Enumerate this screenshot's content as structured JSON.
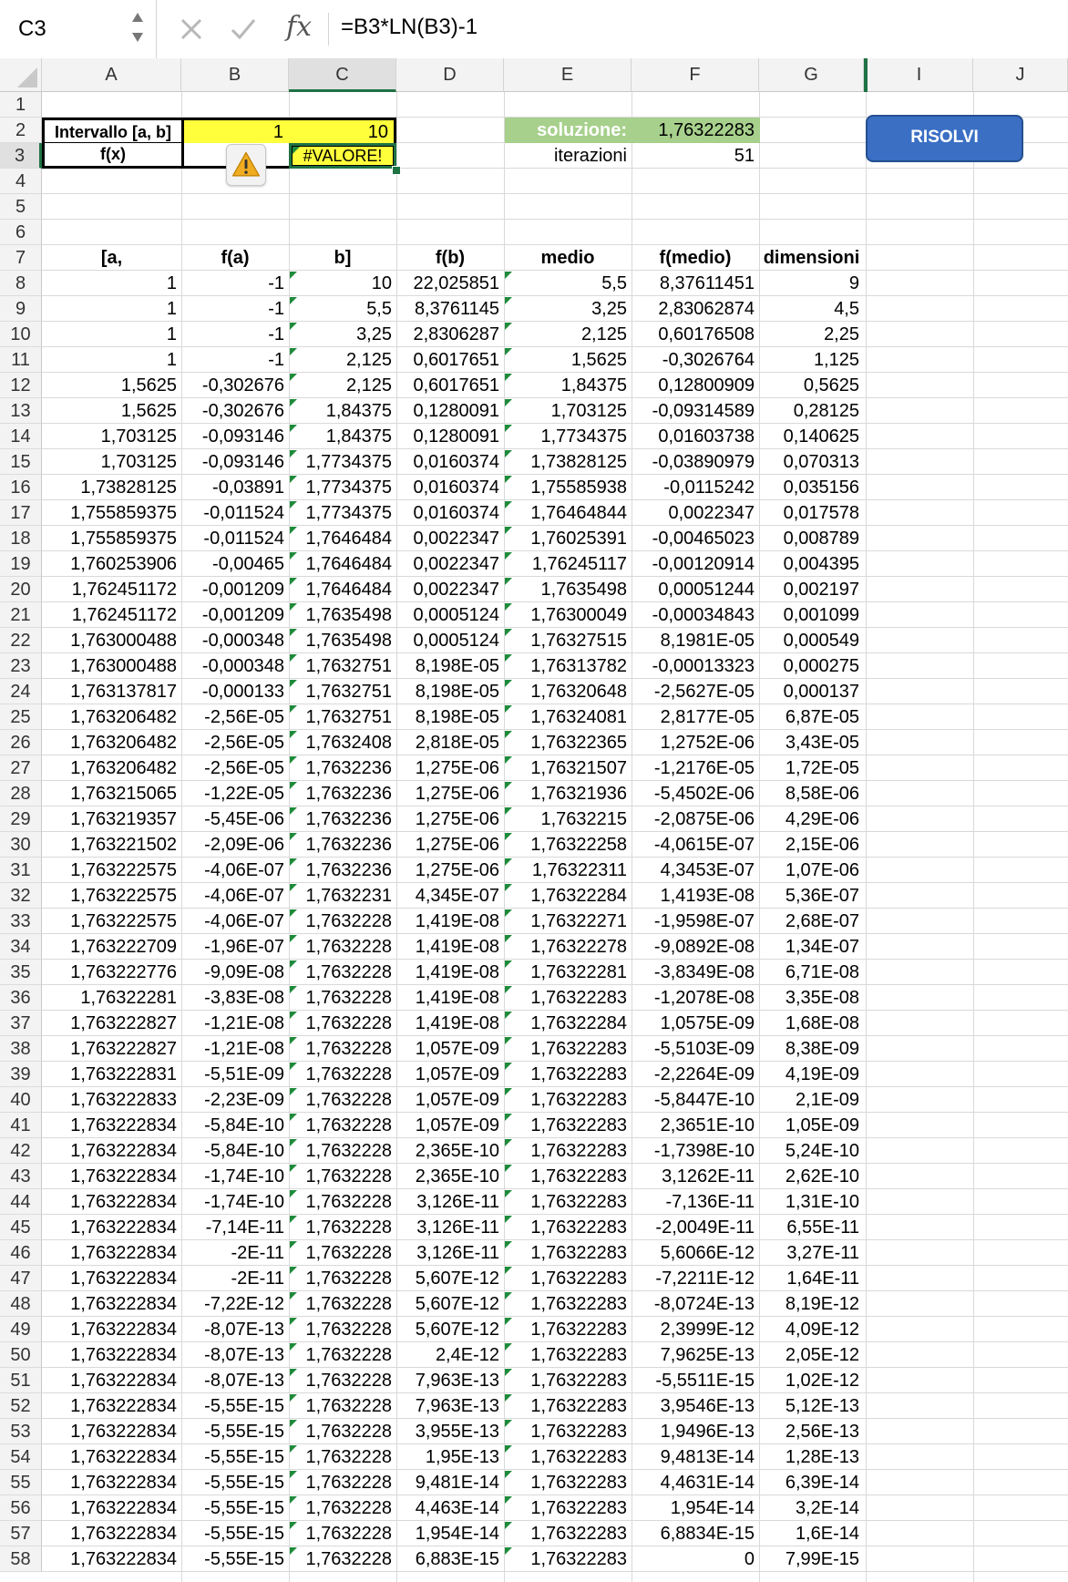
{
  "formula_bar": {
    "name_box": "C3",
    "formula": "=B3*LN(B3)-1"
  },
  "columns": [
    "A",
    "B",
    "C",
    "D",
    "E",
    "F",
    "G",
    "I",
    "J"
  ],
  "selected_column": "C",
  "selected_row": "3",
  "rows": [
    "1",
    "2",
    "3",
    "4",
    "5",
    "6",
    "7",
    "8",
    "9",
    "10",
    "11",
    "12",
    "13",
    "14",
    "15",
    "16",
    "17",
    "18",
    "19",
    "20",
    "21",
    "22",
    "23",
    "24",
    "25",
    "26",
    "27",
    "28",
    "29",
    "30",
    "31",
    "32",
    "33",
    "34",
    "35",
    "36",
    "37",
    "38",
    "39",
    "40",
    "41",
    "42",
    "43",
    "44",
    "45",
    "46",
    "47",
    "48",
    "49",
    "50",
    "51",
    "52",
    "53",
    "54",
    "55",
    "56",
    "57",
    "58"
  ],
  "top": {
    "a2": "Intervallo [a, b]",
    "b2": "1",
    "c2": "10",
    "a3": "f(x)",
    "c3": "#VALORE!",
    "e2": "soluzione:",
    "f2": "1,76322283",
    "e3": "iterazioni",
    "f3": "51"
  },
  "button": {
    "label": "RISOLVI"
  },
  "headers": [
    "[a,",
    "f(a)",
    "b]",
    "f(b)",
    "medio",
    "f(medio)",
    "dimensioni"
  ],
  "table": [
    [
      "1",
      "-1",
      "10",
      "22,025851",
      "5,5",
      "8,37611451",
      "9"
    ],
    [
      "1",
      "-1",
      "5,5",
      "8,3761145",
      "3,25",
      "2,83062874",
      "4,5"
    ],
    [
      "1",
      "-1",
      "3,25",
      "2,8306287",
      "2,125",
      "0,60176508",
      "2,25"
    ],
    [
      "1",
      "-1",
      "2,125",
      "0,6017651",
      "1,5625",
      "-0,3026764",
      "1,125"
    ],
    [
      "1,5625",
      "-0,302676",
      "2,125",
      "0,6017651",
      "1,84375",
      "0,12800909",
      "0,5625"
    ],
    [
      "1,5625",
      "-0,302676",
      "1,84375",
      "0,1280091",
      "1,703125",
      "-0,09314589",
      "0,28125"
    ],
    [
      "1,703125",
      "-0,093146",
      "1,84375",
      "0,1280091",
      "1,7734375",
      "0,01603738",
      "0,140625"
    ],
    [
      "1,703125",
      "-0,093146",
      "1,7734375",
      "0,0160374",
      "1,73828125",
      "-0,03890979",
      "0,070313"
    ],
    [
      "1,73828125",
      "-0,03891",
      "1,7734375",
      "0,0160374",
      "1,75585938",
      "-0,0115242",
      "0,035156"
    ],
    [
      "1,755859375",
      "-0,011524",
      "1,7734375",
      "0,0160374",
      "1,76464844",
      "0,0022347",
      "0,017578"
    ],
    [
      "1,755859375",
      "-0,011524",
      "1,7646484",
      "0,0022347",
      "1,76025391",
      "-0,00465023",
      "0,008789"
    ],
    [
      "1,760253906",
      "-0,00465",
      "1,7646484",
      "0,0022347",
      "1,76245117",
      "-0,00120914",
      "0,004395"
    ],
    [
      "1,762451172",
      "-0,001209",
      "1,7646484",
      "0,0022347",
      "1,7635498",
      "0,00051244",
      "0,002197"
    ],
    [
      "1,762451172",
      "-0,001209",
      "1,7635498",
      "0,0005124",
      "1,76300049",
      "-0,00034843",
      "0,001099"
    ],
    [
      "1,763000488",
      "-0,000348",
      "1,7635498",
      "0,0005124",
      "1,76327515",
      "8,1981E-05",
      "0,000549"
    ],
    [
      "1,763000488",
      "-0,000348",
      "1,7632751",
      "8,198E-05",
      "1,76313782",
      "-0,00013323",
      "0,000275"
    ],
    [
      "1,763137817",
      "-0,000133",
      "1,7632751",
      "8,198E-05",
      "1,76320648",
      "-2,5627E-05",
      "0,000137"
    ],
    [
      "1,763206482",
      "-2,56E-05",
      "1,7632751",
      "8,198E-05",
      "1,76324081",
      "2,8177E-05",
      "6,87E-05"
    ],
    [
      "1,763206482",
      "-2,56E-05",
      "1,7632408",
      "2,818E-05",
      "1,76322365",
      "1,2752E-06",
      "3,43E-05"
    ],
    [
      "1,763206482",
      "-2,56E-05",
      "1,7632236",
      "1,275E-06",
      "1,76321507",
      "-1,2176E-05",
      "1,72E-05"
    ],
    [
      "1,763215065",
      "-1,22E-05",
      "1,7632236",
      "1,275E-06",
      "1,76321936",
      "-5,4502E-06",
      "8,58E-06"
    ],
    [
      "1,763219357",
      "-5,45E-06",
      "1,7632236",
      "1,275E-06",
      "1,7632215",
      "-2,0875E-06",
      "4,29E-06"
    ],
    [
      "1,763221502",
      "-2,09E-06",
      "1,7632236",
      "1,275E-06",
      "1,76322258",
      "-4,0615E-07",
      "2,15E-06"
    ],
    [
      "1,763222575",
      "-4,06E-07",
      "1,7632236",
      "1,275E-06",
      "1,76322311",
      "4,3453E-07",
      "1,07E-06"
    ],
    [
      "1,763222575",
      "-4,06E-07",
      "1,7632231",
      "4,345E-07",
      "1,76322284",
      "1,4193E-08",
      "5,36E-07"
    ],
    [
      "1,763222575",
      "-4,06E-07",
      "1,7632228",
      "1,419E-08",
      "1,76322271",
      "-1,9598E-07",
      "2,68E-07"
    ],
    [
      "1,763222709",
      "-1,96E-07",
      "1,7632228",
      "1,419E-08",
      "1,76322278",
      "-9,0892E-08",
      "1,34E-07"
    ],
    [
      "1,763222776",
      "-9,09E-08",
      "1,7632228",
      "1,419E-08",
      "1,76322281",
      "-3,8349E-08",
      "6,71E-08"
    ],
    [
      "1,76322281",
      "-3,83E-08",
      "1,7632228",
      "1,419E-08",
      "1,76322283",
      "-1,2078E-08",
      "3,35E-08"
    ],
    [
      "1,763222827",
      "-1,21E-08",
      "1,7632228",
      "1,419E-08",
      "1,76322284",
      "1,0575E-09",
      "1,68E-08"
    ],
    [
      "1,763222827",
      "-1,21E-08",
      "1,7632228",
      "1,057E-09",
      "1,76322283",
      "-5,5103E-09",
      "8,38E-09"
    ],
    [
      "1,763222831",
      "-5,51E-09",
      "1,7632228",
      "1,057E-09",
      "1,76322283",
      "-2,2264E-09",
      "4,19E-09"
    ],
    [
      "1,763222833",
      "-2,23E-09",
      "1,7632228",
      "1,057E-09",
      "1,76322283",
      "-5,8447E-10",
      "2,1E-09"
    ],
    [
      "1,763222834",
      "-5,84E-10",
      "1,7632228",
      "1,057E-09",
      "1,76322283",
      "2,3651E-10",
      "1,05E-09"
    ],
    [
      "1,763222834",
      "-5,84E-10",
      "1,7632228",
      "2,365E-10",
      "1,76322283",
      "-1,7398E-10",
      "5,24E-10"
    ],
    [
      "1,763222834",
      "-1,74E-10",
      "1,7632228",
      "2,365E-10",
      "1,76322283",
      "3,1262E-11",
      "2,62E-10"
    ],
    [
      "1,763222834",
      "-1,74E-10",
      "1,7632228",
      "3,126E-11",
      "1,76322283",
      "-7,136E-11",
      "1,31E-10"
    ],
    [
      "1,763222834",
      "-7,14E-11",
      "1,7632228",
      "3,126E-11",
      "1,76322283",
      "-2,0049E-11",
      "6,55E-11"
    ],
    [
      "1,763222834",
      "-2E-11",
      "1,7632228",
      "3,126E-11",
      "1,76322283",
      "5,6066E-12",
      "3,27E-11"
    ],
    [
      "1,763222834",
      "-2E-11",
      "1,7632228",
      "5,607E-12",
      "1,76322283",
      "-7,2211E-12",
      "1,64E-11"
    ],
    [
      "1,763222834",
      "-7,22E-12",
      "1,7632228",
      "5,607E-12",
      "1,76322283",
      "-8,0724E-13",
      "8,19E-12"
    ],
    [
      "1,763222834",
      "-8,07E-13",
      "1,7632228",
      "5,607E-12",
      "1,76322283",
      "2,3999E-12",
      "4,09E-12"
    ],
    [
      "1,763222834",
      "-8,07E-13",
      "1,7632228",
      "2,4E-12",
      "1,76322283",
      "7,9625E-13",
      "2,05E-12"
    ],
    [
      "1,763222834",
      "-8,07E-13",
      "1,7632228",
      "7,963E-13",
      "1,76322283",
      "-5,5511E-15",
      "1,02E-12"
    ],
    [
      "1,763222834",
      "-5,55E-15",
      "1,7632228",
      "7,963E-13",
      "1,76322283",
      "3,9546E-13",
      "5,12E-13"
    ],
    [
      "1,763222834",
      "-5,55E-15",
      "1,7632228",
      "3,955E-13",
      "1,76322283",
      "1,9496E-13",
      "2,56E-13"
    ],
    [
      "1,763222834",
      "-5,55E-15",
      "1,7632228",
      "1,95E-13",
      "1,76322283",
      "9,4813E-14",
      "1,28E-13"
    ],
    [
      "1,763222834",
      "-5,55E-15",
      "1,7632228",
      "9,481E-14",
      "1,76322283",
      "4,4631E-14",
      "6,39E-14"
    ],
    [
      "1,763222834",
      "-5,55E-15",
      "1,7632228",
      "4,463E-14",
      "1,76322283",
      "1,954E-14",
      "3,2E-14"
    ],
    [
      "1,763222834",
      "-5,55E-15",
      "1,7632228",
      "1,954E-14",
      "1,76322283",
      "6,8834E-15",
      "1,6E-14"
    ],
    [
      "1,763222834",
      "-5,55E-15",
      "1,7632228",
      "6,883E-15",
      "1,76322283",
      "0",
      "7,99E-15"
    ]
  ],
  "colors": {
    "yellow": "#ffff3c",
    "green": "#a7d08c",
    "button": "#3a6fc4",
    "accent": "#1f7244"
  },
  "icons": {
    "warning": "warning-icon",
    "cancel": "x-icon",
    "enter": "checkmark-icon",
    "function": "fx-icon"
  }
}
